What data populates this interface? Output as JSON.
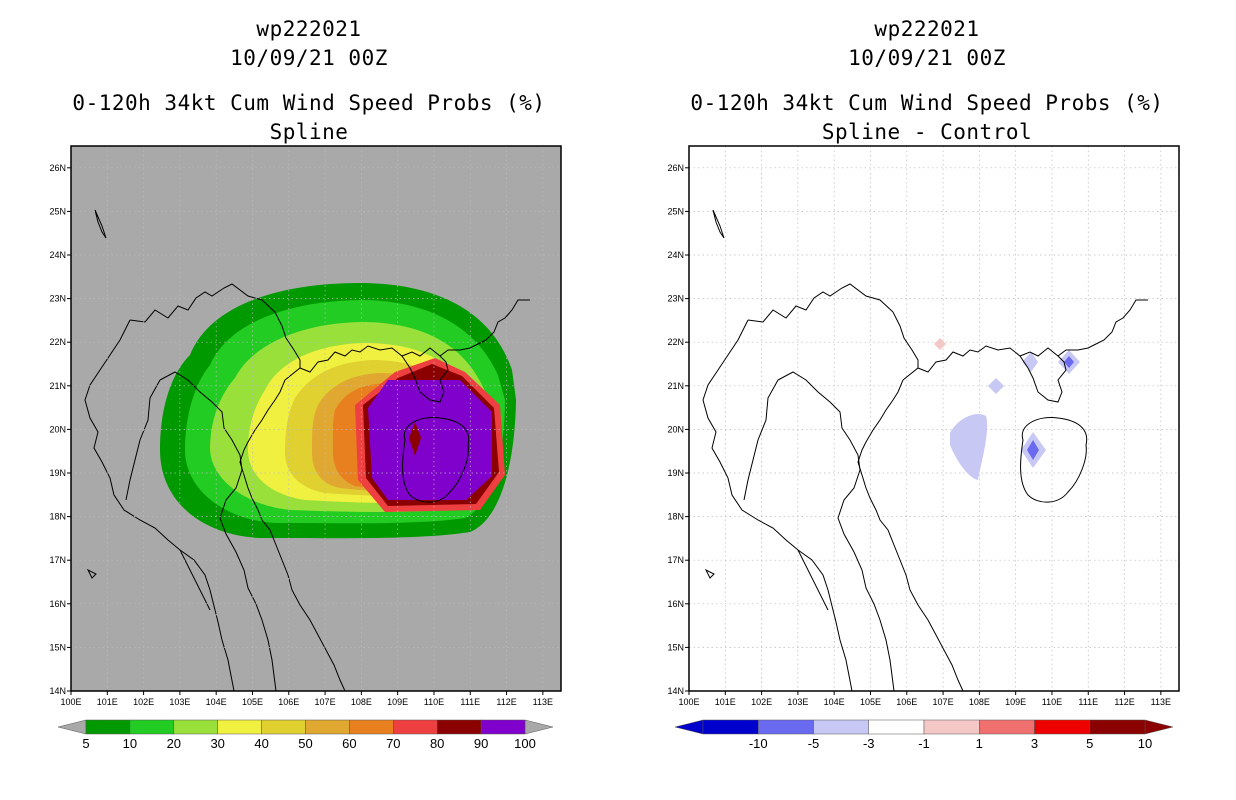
{
  "maps": [
    {
      "id": "left",
      "storm_id": "wp222021",
      "datetime": "10/09/21 00Z",
      "product": "0-120h 34kt Cum Wind Speed Probs (%)",
      "subtitle": "Spline",
      "colorbar": {
        "labels": [
          "5",
          "10",
          "20",
          "30",
          "40",
          "50",
          "60",
          "70",
          "80",
          "90",
          "100"
        ],
        "colors": [
          "#009900",
          "#22cc22",
          "#99e03a",
          "#f0f040",
          "#e0d030",
          "#e0a830",
          "#e88020",
          "#ee4040",
          "#8b0000",
          "#8000cc"
        ]
      },
      "colors": {
        "background": "#a9a9a9"
      }
    },
    {
      "id": "right",
      "storm_id": "wp222021",
      "datetime": "10/09/21 00Z",
      "product": "0-120h 34kt Cum Wind Speed Probs (%)",
      "subtitle": "Spline - Control",
      "colorbar": {
        "labels": [
          "-10",
          "-5",
          "-3",
          "-1",
          "1",
          "3",
          "5",
          "10"
        ],
        "colors": [
          "#0000cc",
          "#6a6af0",
          "#c8c8f5",
          "#ffffff",
          "#f5c8c8",
          "#f07070",
          "#ee0000",
          "#8b0000"
        ]
      },
      "colors": {
        "background": "#ffffff"
      }
    }
  ],
  "axes": {
    "lon_labels": [
      "100E",
      "101E",
      "102E",
      "103E",
      "104E",
      "105E",
      "106E",
      "107E",
      "108E",
      "109E",
      "110E",
      "111E",
      "112E",
      "113E"
    ],
    "lat_labels": [
      "14N",
      "15N",
      "16N",
      "17N",
      "18N",
      "19N",
      "20N",
      "21N",
      "22N",
      "23N",
      "24N",
      "25N",
      "26N"
    ]
  },
  "colors": {
    "coastline": "#000000",
    "grid": "#bbbbbb",
    "frame": "#000000"
  }
}
